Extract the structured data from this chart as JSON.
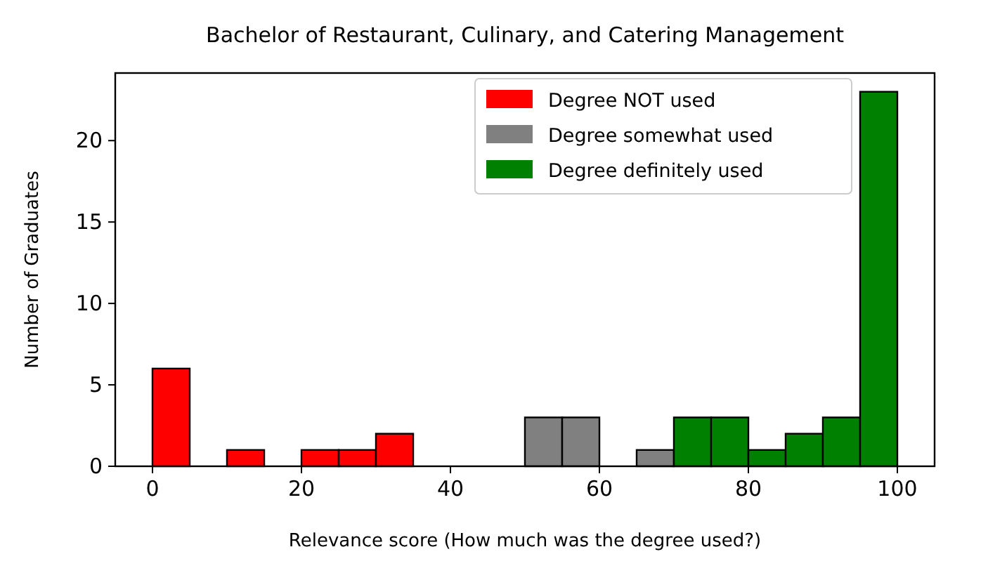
{
  "chart_data": {
    "type": "histogram",
    "title": "Bachelor of Restaurant, Culinary, and Catering Management",
    "xlabel": "Relevance score (How much was the degree used?)",
    "ylabel": "Number of Graduates",
    "bins": [
      0,
      5,
      10,
      15,
      20,
      25,
      30,
      35,
      40,
      45,
      50,
      55,
      60,
      65,
      70,
      75,
      80,
      85,
      90,
      95,
      100
    ],
    "series": [
      {
        "name": "Degree NOT used",
        "color": "#ff0000",
        "values": [
          6,
          0,
          1,
          0,
          1,
          1,
          2,
          0,
          0,
          0,
          null,
          null,
          null,
          null,
          null,
          null,
          null,
          null,
          null,
          null
        ]
      },
      {
        "name": "Degree somewhat used",
        "color": "#808080",
        "values": [
          null,
          null,
          null,
          null,
          null,
          null,
          null,
          null,
          null,
          null,
          3,
          3,
          0,
          1,
          null,
          null,
          null,
          null,
          null,
          null
        ]
      },
      {
        "name": "Degree definitely used",
        "color": "#008000",
        "values": [
          null,
          null,
          null,
          null,
          null,
          null,
          null,
          null,
          null,
          null,
          null,
          null,
          null,
          null,
          3,
          3,
          1,
          2,
          3,
          23
        ]
      }
    ],
    "xlim": [
      -5,
      105
    ],
    "ylim": [
      0,
      24.15
    ],
    "xticks": [
      0,
      20,
      40,
      60,
      80,
      100
    ],
    "yticks": [
      0,
      5,
      10,
      15,
      20
    ],
    "grid": false,
    "legend": "top right"
  }
}
